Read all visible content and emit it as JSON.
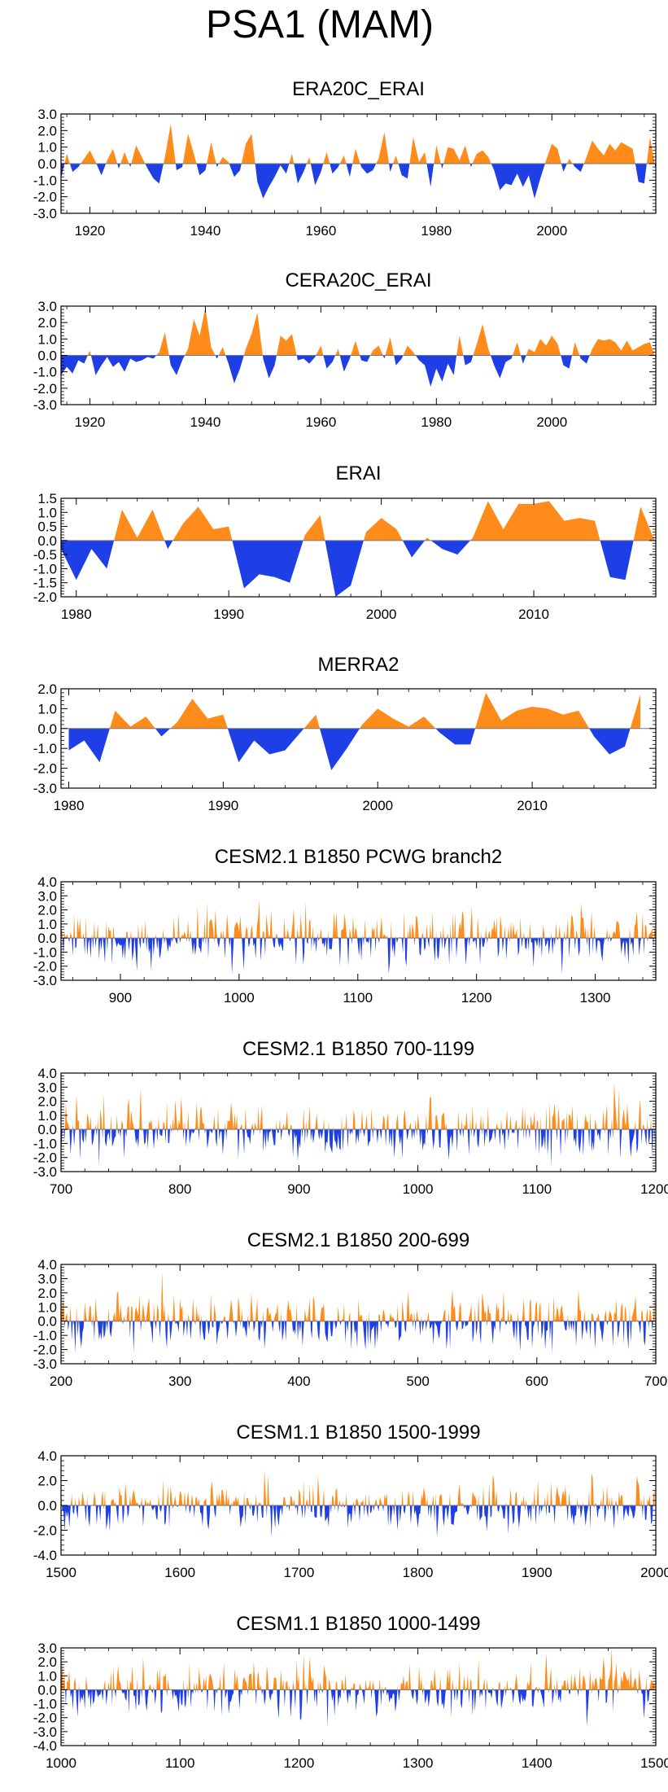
{
  "figure_title": "PSA1 (MAM)",
  "colors": {
    "positive": "#ff8c1a",
    "negative": "#1f3fe6",
    "axis": "#000000",
    "zero_line": "#777777"
  },
  "chart_data": [
    {
      "type": "area",
      "title": "ERA20C_ERAI",
      "xlim": [
        1915,
        2018
      ],
      "ylim": [
        -3,
        3
      ],
      "yticks": [
        3,
        2,
        1,
        0,
        -1,
        -2,
        -3
      ],
      "ytick_labels": [
        "3.0",
        "2.0",
        "1.0",
        "0.0",
        "-1.0",
        "-2.0",
        "-3.0"
      ],
      "xticks": [
        1920,
        1940,
        1960,
        1980,
        2000
      ],
      "x": [
        1915,
        1916,
        1917,
        1918,
        1919,
        1920,
        1921,
        1922,
        1923,
        1924,
        1925,
        1926,
        1927,
        1928,
        1929,
        1930,
        1931,
        1932,
        1933,
        1934,
        1935,
        1936,
        1937,
        1938,
        1939,
        1940,
        1941,
        1942,
        1943,
        1944,
        1945,
        1946,
        1947,
        1948,
        1949,
        1950,
        1951,
        1952,
        1953,
        1954,
        1955,
        1956,
        1957,
        1958,
        1959,
        1960,
        1961,
        1962,
        1963,
        1964,
        1965,
        1966,
        1967,
        1968,
        1969,
        1970,
        1971,
        1972,
        1973,
        1974,
        1975,
        1976,
        1977,
        1978,
        1979,
        1980,
        1981,
        1982,
        1983,
        1984,
        1985,
        1986,
        1987,
        1988,
        1989,
        1990,
        1991,
        1992,
        1993,
        1994,
        1995,
        1996,
        1997,
        1998,
        1999,
        2000,
        2001,
        2002,
        2003,
        2004,
        2005,
        2006,
        2007,
        2008,
        2009,
        2010,
        2011,
        2012,
        2013,
        2014,
        2015,
        2016,
        2017,
        2018
      ],
      "values": [
        -0.9,
        0.6,
        -0.5,
        -0.2,
        0.3,
        0.8,
        0.1,
        -0.7,
        0.2,
        0.9,
        -0.3,
        0.7,
        -0.2,
        1.1,
        0.4,
        -0.3,
        -0.9,
        -1.2,
        0.4,
        2.4,
        -0.4,
        -0.2,
        1.8,
        0.6,
        -0.7,
        -0.4,
        1.3,
        -0.2,
        0.4,
        0.1,
        -0.8,
        -0.4,
        1.2,
        1.8,
        -1.1,
        -2.1,
        -1.4,
        -0.8,
        -0.1,
        -0.6,
        0.6,
        -1.2,
        -0.5,
        0.4,
        -1.3,
        -0.5,
        0.7,
        -0.6,
        -0.2,
        0.5,
        -0.8,
        0.9,
        -0.2,
        -0.6,
        -0.4,
        0.3,
        1.9,
        -0.5,
        0.5,
        -0.7,
        -0.9,
        1.6,
        0.1,
        0.7,
        -1.4,
        1.1,
        -0.3,
        1.0,
        0.9,
        0.2,
        1.1,
        -0.2,
        0.6,
        0.8,
        0.4,
        -0.4,
        -1.6,
        -1.2,
        -1.3,
        -0.6,
        -1.4,
        -0.7,
        -2.1,
        -0.9,
        0.2,
        1.2,
        0.9,
        -0.5,
        0.3,
        -0.2,
        -0.5,
        0.4,
        1.4,
        0.9,
        0.5,
        1.2,
        0.8,
        1.3,
        1.1,
        0.9,
        -1.1,
        -1.2,
        1.6,
        -0.4
      ]
    },
    {
      "type": "area",
      "title": "CERA20C_ERAI",
      "xlim": [
        1915,
        2018
      ],
      "ylim": [
        -3,
        3
      ],
      "yticks": [
        3,
        2,
        1,
        0,
        -1,
        -2,
        -3
      ],
      "ytick_labels": [
        "3.0",
        "2.0",
        "1.0",
        "0.0",
        "-1.0",
        "-2.0",
        "-3.0"
      ],
      "xticks": [
        1920,
        1940,
        1960,
        1980,
        2000
      ],
      "x": [
        1915,
        1916,
        1917,
        1918,
        1919,
        1920,
        1921,
        1922,
        1923,
        1924,
        1925,
        1926,
        1927,
        1928,
        1929,
        1930,
        1931,
        1932,
        1933,
        1934,
        1935,
        1936,
        1937,
        1938,
        1939,
        1940,
        1941,
        1942,
        1943,
        1944,
        1945,
        1946,
        1947,
        1948,
        1949,
        1950,
        1951,
        1952,
        1953,
        1954,
        1955,
        1956,
        1957,
        1958,
        1959,
        1960,
        1961,
        1962,
        1963,
        1964,
        1965,
        1966,
        1967,
        1968,
        1969,
        1970,
        1971,
        1972,
        1973,
        1974,
        1975,
        1976,
        1977,
        1978,
        1979,
        1980,
        1981,
        1982,
        1983,
        1984,
        1985,
        1986,
        1987,
        1988,
        1989,
        1990,
        1991,
        1992,
        1993,
        1994,
        1995,
        1996,
        1997,
        1998,
        1999,
        2000,
        2001,
        2002,
        2003,
        2004,
        2005,
        2006,
        2007,
        2008,
        2009,
        2010,
        2011,
        2012,
        2013,
        2014,
        2015,
        2016,
        2017,
        2018
      ],
      "values": [
        -1.2,
        -0.7,
        -1.1,
        -0.3,
        -0.5,
        0.3,
        -1.2,
        -0.6,
        -0.1,
        -0.7,
        -0.4,
        -1.0,
        -0.2,
        -0.4,
        -0.3,
        -0.1,
        -0.2,
        0.2,
        1.4,
        -0.6,
        -1.2,
        -0.3,
        0.4,
        2.2,
        1.2,
        2.9,
        0.5,
        -0.2,
        0.5,
        -0.5,
        -1.7,
        -0.8,
        0.4,
        1.3,
        2.6,
        -0.2,
        -1.4,
        -0.6,
        1.2,
        0.9,
        1.3,
        -0.3,
        -0.2,
        -0.5,
        -0.1,
        0.6,
        -0.8,
        -0.4,
        0.4,
        -1.0,
        -0.2,
        0.9,
        -0.3,
        -0.4,
        0.3,
        0.6,
        -0.2,
        1.1,
        -0.6,
        -0.2,
        0.6,
        0.2,
        -0.3,
        -0.6,
        -1.9,
        -0.8,
        -1.6,
        -0.5,
        -1.2,
        1.2,
        -0.6,
        -0.4,
        0.7,
        1.9,
        0.4,
        -0.6,
        -1.4,
        -0.4,
        -0.2,
        0.8,
        -0.5,
        0.4,
        0.2,
        1.0,
        0.6,
        1.2,
        0.7,
        -0.6,
        -0.8,
        0.8,
        -0.2,
        -0.5,
        0.4,
        1.0,
        0.9,
        1.0,
        0.8,
        0.3,
        0.9,
        0.3,
        0.5,
        0.7,
        0.8,
        -0.2
      ]
    },
    {
      "type": "area",
      "title": "ERAI",
      "xlim": [
        1979,
        2018
      ],
      "ylim": [
        -2,
        1.5
      ],
      "yticks": [
        1.5,
        1,
        0.5,
        0,
        -0.5,
        -1,
        -1.5,
        -2
      ],
      "ytick_labels": [
        "1.5",
        "1.0",
        "0.5",
        "0.0",
        "-0.5",
        "-1.0",
        "-1.5",
        "-2.0"
      ],
      "xticks": [
        1980,
        1990,
        2000,
        2010
      ],
      "x": [
        1979,
        1980,
        1981,
        1982,
        1983,
        1984,
        1985,
        1986,
        1987,
        1988,
        1989,
        1990,
        1991,
        1992,
        1993,
        1994,
        1995,
        1996,
        1997,
        1998,
        1999,
        2000,
        2001,
        2002,
        2003,
        2004,
        2005,
        2006,
        2007,
        2008,
        2009,
        2010,
        2011,
        2012,
        2013,
        2014,
        2015,
        2016,
        2017,
        2018
      ],
      "values": [
        -0.3,
        -1.4,
        -0.3,
        -1.0,
        1.1,
        0.1,
        1.1,
        -0.3,
        0.6,
        1.2,
        0.4,
        0.5,
        -1.7,
        -1.2,
        -1.3,
        -1.5,
        0.2,
        0.9,
        -2.0,
        -1.6,
        0.3,
        0.8,
        0.4,
        -0.6,
        0.1,
        -0.3,
        -0.5,
        0.1,
        1.4,
        0.4,
        1.3,
        1.3,
        1.4,
        0.7,
        0.8,
        0.7,
        -1.3,
        -1.4,
        1.2,
        -0.1
      ]
    },
    {
      "type": "area",
      "title": "MERRA2",
      "xlim": [
        1979.5,
        2018
      ],
      "ylim": [
        -3,
        2
      ],
      "yticks": [
        2,
        1,
        0,
        -1,
        -2,
        -3
      ],
      "ytick_labels": [
        "2.0",
        "1.0",
        "0.0",
        "-1.0",
        "-2.0",
        "-3.0"
      ],
      "xticks": [
        1980,
        1990,
        2000,
        2010
      ],
      "x": [
        1980,
        1981,
        1982,
        1983,
        1984,
        1985,
        1986,
        1987,
        1988,
        1989,
        1990,
        1991,
        1992,
        1993,
        1994,
        1995,
        1996,
        1997,
        1998,
        1999,
        2000,
        2001,
        2002,
        2003,
        2004,
        2005,
        2006,
        2007,
        2008,
        2009,
        2010,
        2011,
        2012,
        2013,
        2014,
        2015,
        2016,
        2017
      ],
      "values": [
        -1.1,
        -0.6,
        -1.7,
        0.9,
        0.1,
        0.6,
        -0.4,
        0.3,
        1.5,
        0.5,
        0.7,
        -1.7,
        -0.6,
        -1.3,
        -1.1,
        -0.2,
        0.7,
        -2.1,
        -1.0,
        0.2,
        1.0,
        0.5,
        0.1,
        0.6,
        -0.2,
        -0.8,
        -0.8,
        1.8,
        0.4,
        0.9,
        1.1,
        1.0,
        0.7,
        0.9,
        -0.4,
        -1.3,
        -0.9,
        1.7
      ]
    },
    {
      "type": "area",
      "title": "CESM2.1 B1850 PCWG branch2",
      "synthetic_series": {
        "start": 850,
        "end": 1351,
        "seed": 11,
        "sd": 0.95,
        "max": 3.5,
        "min": -3.0
      },
      "xlim": [
        850,
        1351
      ],
      "ylim": [
        -3,
        4
      ],
      "yticks": [
        4,
        3,
        2,
        1,
        0,
        -1,
        -2,
        -3
      ],
      "ytick_labels": [
        "4.0",
        "3.0",
        "2.0",
        "1.0",
        "0.0",
        "-1.0",
        "-2.0",
        "-3.0"
      ],
      "xticks": [
        900,
        1000,
        1100,
        1200,
        1300
      ]
    },
    {
      "type": "area",
      "title": "CESM2.1 B1850 700-1199",
      "synthetic_series": {
        "start": 700,
        "end": 1199,
        "seed": 23,
        "sd": 0.95,
        "max": 3.5,
        "min": -3.0
      },
      "xlim": [
        700,
        1200
      ],
      "ylim": [
        -3,
        4
      ],
      "yticks": [
        4,
        3,
        2,
        1,
        0,
        -1,
        -2,
        -3
      ],
      "ytick_labels": [
        "4.0",
        "3.0",
        "2.0",
        "1.0",
        "0.0",
        "-1.0",
        "-2.0",
        "-3.0"
      ],
      "xticks": [
        700,
        800,
        900,
        1000,
        1100,
        1200
      ]
    },
    {
      "type": "area",
      "title": "CESM2.1 B1850 200-699",
      "synthetic_series": {
        "start": 200,
        "end": 699,
        "seed": 37,
        "sd": 0.95,
        "max": 3.5,
        "min": -3.0
      },
      "xlim": [
        200,
        700
      ],
      "ylim": [
        -3,
        4
      ],
      "yticks": [
        4,
        3,
        2,
        1,
        0,
        -1,
        -2,
        -3
      ],
      "ytick_labels": [
        "4.0",
        "3.0",
        "2.0",
        "1.0",
        "0.0",
        "-1.0",
        "-2.0",
        "-3.0"
      ],
      "xticks": [
        200,
        300,
        400,
        500,
        600,
        700
      ]
    },
    {
      "type": "area",
      "title": "CESM1.1 B1850 1500-1999",
      "synthetic_series": {
        "start": 1500,
        "end": 1999,
        "seed": 41,
        "sd": 1.0,
        "max": 3.5,
        "min": -3.5
      },
      "xlim": [
        1500,
        2000
      ],
      "ylim": [
        -4,
        4
      ],
      "yticks": [
        4,
        2,
        0,
        -2,
        -4
      ],
      "ytick_labels": [
        "4.0",
        "2.0",
        "0.0",
        "-2.0",
        "-4.0"
      ],
      "xticks": [
        1500,
        1600,
        1700,
        1800,
        1900,
        2000
      ]
    },
    {
      "type": "area",
      "title": "CESM1.1 B1850 1000-1499",
      "synthetic_series": {
        "start": 1000,
        "end": 1499,
        "seed": 53,
        "sd": 0.95,
        "max": 3.0,
        "min": -3.5
      },
      "xlim": [
        1000,
        1500
      ],
      "ylim": [
        -4,
        3
      ],
      "yticks": [
        3,
        2,
        1,
        0,
        -1,
        -2,
        -3,
        -4
      ],
      "ytick_labels": [
        "3.0",
        "2.0",
        "1.0",
        "0.0",
        "-1.0",
        "-2.0",
        "-3.0",
        "-4.0"
      ],
      "xticks": [
        1000,
        1100,
        1200,
        1300,
        1400,
        1500
      ]
    }
  ]
}
